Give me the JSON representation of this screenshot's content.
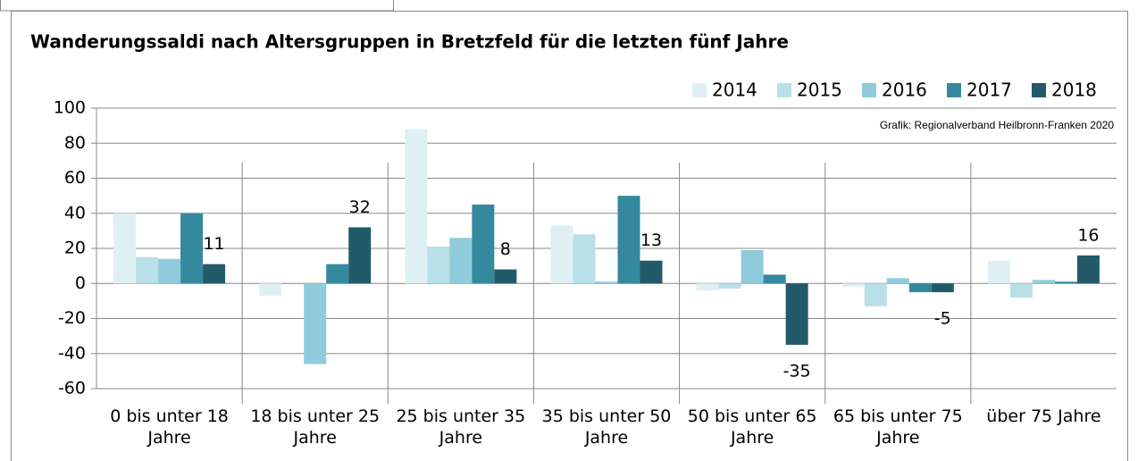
{
  "chart_data": {
    "type": "bar",
    "title": "Wanderungssaldi nach Altersgruppen in Bretzfeld für die letzten fünf Jahre",
    "source": "Grafik: Regionalverband Heilbronn-Franken 2020",
    "categories": [
      "0 bis unter 18 Jahre",
      "18 bis unter 25 Jahre",
      "25 bis unter 35 Jahre",
      "35 bis unter 50 Jahre",
      "50 bis unter 65 Jahre",
      "65 bis unter 75 Jahre",
      "über 75 Jahre"
    ],
    "series": [
      {
        "name": "2014",
        "color": "#dff0f5",
        "values": [
          40,
          -7,
          88,
          33,
          -4,
          -2,
          13
        ]
      },
      {
        "name": "2015",
        "color": "#b9dfe8",
        "values": [
          15,
          0,
          21,
          28,
          -3,
          -13,
          -8
        ]
      },
      {
        "name": "2016",
        "color": "#8fcbdb",
        "values": [
          14,
          -46,
          26,
          1,
          19,
          3,
          2
        ]
      },
      {
        "name": "2017",
        "color": "#35899f",
        "values": [
          40,
          11,
          45,
          50,
          5,
          -5,
          1
        ]
      },
      {
        "name": "2018",
        "color": "#235a6a",
        "values": [
          11,
          32,
          8,
          13,
          -35,
          -5,
          16
        ],
        "data_labels": true
      }
    ],
    "ylim": [
      -60,
      100
    ],
    "yticks": [
      -60,
      -40,
      -20,
      0,
      20,
      40,
      60,
      80,
      100
    ],
    "grid": true,
    "legend": "top-right"
  }
}
